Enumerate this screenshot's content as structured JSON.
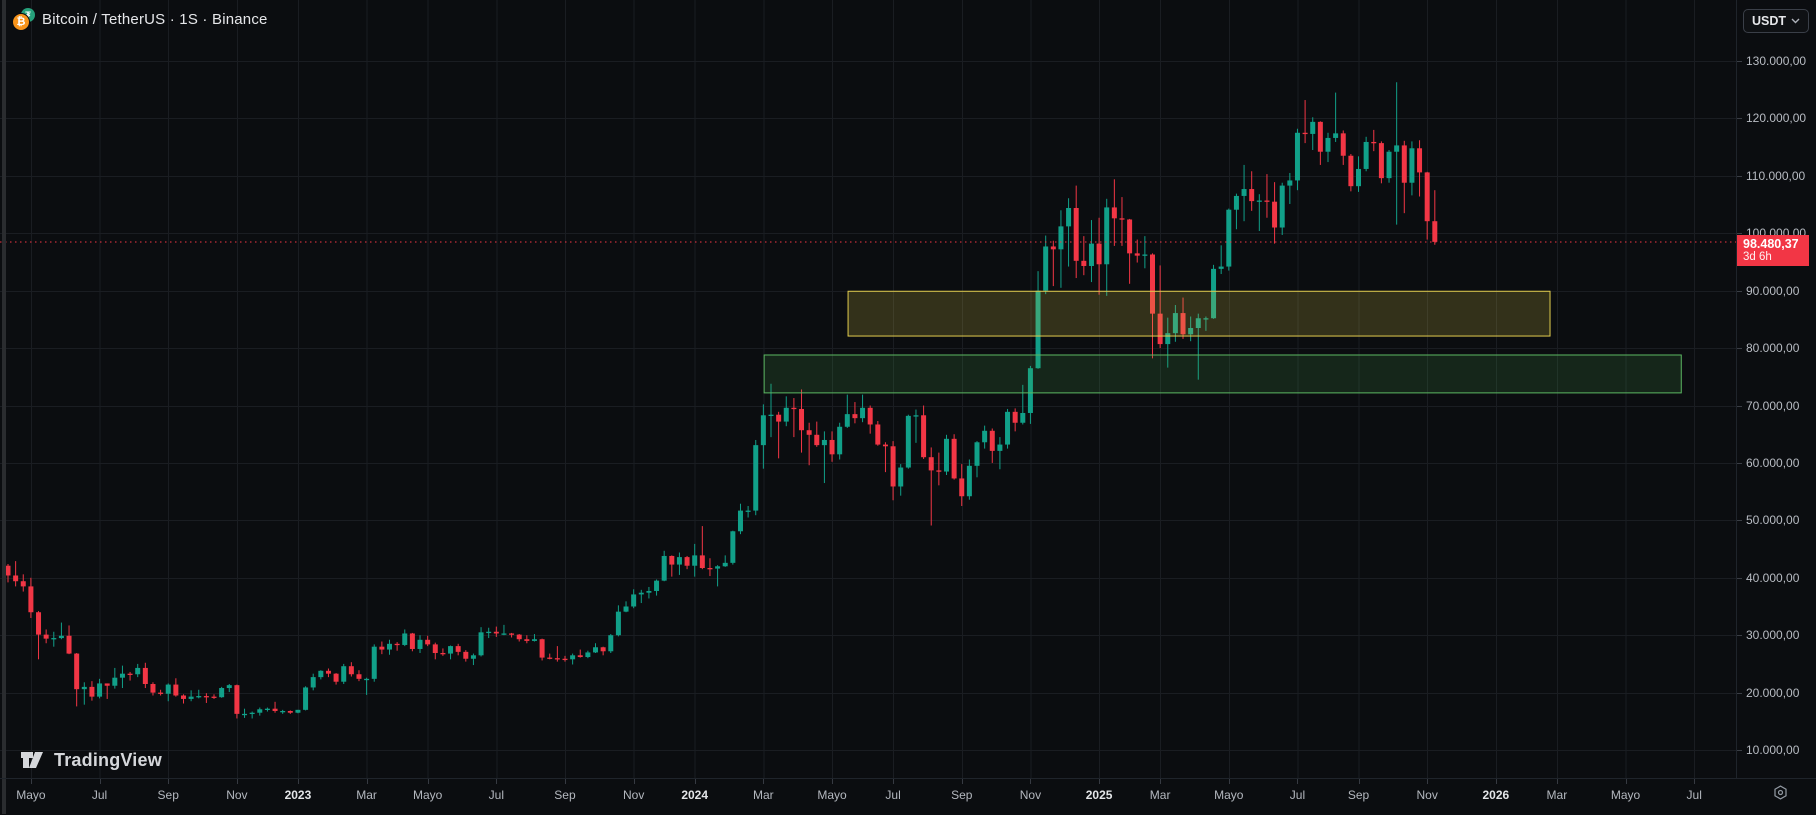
{
  "header": {
    "symbol_title": "Bitcoin / TetherUS · 1S · Binance",
    "currency_button": "USDT"
  },
  "last_price_label": {
    "price_text": "98.480,37",
    "countdown_text": "3d 6h"
  },
  "footer": {
    "logo_text": "TradingView"
  },
  "colors": {
    "background": "#0b0d10",
    "up": "#11a089",
    "down": "#f23645",
    "grid": "#1a1d22",
    "axis_text": "#b8bcc3",
    "last_price_line": "#f23645",
    "zone_yellow_border": "#e2cd4e",
    "zone_yellow_fill": "rgba(216,194,70,0.20)",
    "zone_green_border": "#5cb862",
    "zone_green_fill": "rgba(76,175,80,0.16)"
  },
  "chart_data": {
    "type": "candlestick",
    "title": "Bitcoin / TetherUS weekly candles (1S) on Binance",
    "interval": "1W",
    "start_week": "2022-04-11",
    "price_unit": "USD, values in thousands",
    "visible_price_range_thousands": [
      5.1,
      140.6
    ],
    "grid": true,
    "last_price": 98.48037,
    "price_axis": {
      "labels": [
        {
          "text": "130.000,00",
          "value": 130
        },
        {
          "text": "120.000,00",
          "value": 120
        },
        {
          "text": "110.000,00",
          "value": 110
        },
        {
          "text": "100.000,00",
          "value": 100
        },
        {
          "text": "90.000,00",
          "value": 90
        },
        {
          "text": "80.000,00",
          "value": 80
        },
        {
          "text": "70.000,00",
          "value": 70
        },
        {
          "text": "60.000,00",
          "value": 60
        },
        {
          "text": "50.000,00",
          "value": 50
        },
        {
          "text": "40.000,00",
          "value": 40
        },
        {
          "text": "30.000,00",
          "value": 30
        },
        {
          "text": "20.000,00",
          "value": 20
        },
        {
          "text": "10.000,00",
          "value": 10
        }
      ]
    },
    "time_axis": {
      "ticks": [
        {
          "label": "Mayo",
          "week": 3,
          "year": false
        },
        {
          "label": "Jul",
          "week": 12,
          "year": false
        },
        {
          "label": "Sep",
          "week": 21,
          "year": false
        },
        {
          "label": "Nov",
          "week": 30,
          "year": false
        },
        {
          "label": "2023",
          "week": 38,
          "year": true
        },
        {
          "label": "Mar",
          "week": 47,
          "year": false
        },
        {
          "label": "Mayo",
          "week": 55,
          "year": false
        },
        {
          "label": "Jul",
          "week": 64,
          "year": false
        },
        {
          "label": "Sep",
          "week": 73,
          "year": false
        },
        {
          "label": "Nov",
          "week": 82,
          "year": false
        },
        {
          "label": "2024",
          "week": 90,
          "year": true
        },
        {
          "label": "Mar",
          "week": 99,
          "year": false
        },
        {
          "label": "Mayo",
          "week": 108,
          "year": false
        },
        {
          "label": "Jul",
          "week": 116,
          "year": false
        },
        {
          "label": "Sep",
          "week": 125,
          "year": false
        },
        {
          "label": "Nov",
          "week": 134,
          "year": false
        },
        {
          "label": "2025",
          "week": 143,
          "year": true
        },
        {
          "label": "Mar",
          "week": 151,
          "year": false
        },
        {
          "label": "Mayo",
          "week": 160,
          "year": false
        },
        {
          "label": "Jul",
          "week": 169,
          "year": false
        },
        {
          "label": "Sep",
          "week": 177,
          "year": false
        },
        {
          "label": "Nov",
          "week": 186,
          "year": false
        },
        {
          "label": "2026",
          "week": 195,
          "year": true
        },
        {
          "label": "Mar",
          "week": 203,
          "year": false
        },
        {
          "label": "Mayo",
          "week": 212,
          "year": false
        },
        {
          "label": "Jul",
          "week": 221,
          "year": false
        }
      ]
    },
    "zones": [
      {
        "name": "supply-zone-yellow",
        "price_top": 89.9,
        "price_bottom": 82.1,
        "week_start": 110.1,
        "week_end": 202.1
      },
      {
        "name": "demand-zone-green",
        "price_top": 78.8,
        "price_bottom": 72.2,
        "week_start": 99.1,
        "week_end": 219.3
      }
    ],
    "candles": [
      [
        42.1,
        42.4,
        39.2,
        40.4
      ],
      [
        40.4,
        42.9,
        38.5,
        39.4
      ],
      [
        39.4,
        40.6,
        37.6,
        38.5
      ],
      [
        38.5,
        40.0,
        33.0,
        34.0
      ],
      [
        34.0,
        34.2,
        25.8,
        30.1
      ],
      [
        30.1,
        31.0,
        28.6,
        29.4
      ],
      [
        29.4,
        30.6,
        28.0,
        29.5
      ],
      [
        29.5,
        32.2,
        29.3,
        29.9
      ],
      [
        29.9,
        31.7,
        26.7,
        26.8
      ],
      [
        26.8,
        26.9,
        17.6,
        20.6
      ],
      [
        20.6,
        21.8,
        17.9,
        21.0
      ],
      [
        21.0,
        22.0,
        18.6,
        19.3
      ],
      [
        19.3,
        22.4,
        19.0,
        21.6
      ],
      [
        21.6,
        21.6,
        18.9,
        21.2
      ],
      [
        21.2,
        24.3,
        20.7,
        22.6
      ],
      [
        22.6,
        24.7,
        20.8,
        23.3
      ],
      [
        23.3,
        23.6,
        22.1,
        23.2
      ],
      [
        23.2,
        25.0,
        22.7,
        24.3
      ],
      [
        24.3,
        25.2,
        20.8,
        21.5
      ],
      [
        21.5,
        21.8,
        19.5,
        20.0
      ],
      [
        20.0,
        20.5,
        19.5,
        19.8
      ],
      [
        19.8,
        21.6,
        18.5,
        21.4
      ],
      [
        21.4,
        22.5,
        19.3,
        19.5
      ],
      [
        19.5,
        19.7,
        18.1,
        18.9
      ],
      [
        18.9,
        20.4,
        18.5,
        19.3
      ],
      [
        19.3,
        20.5,
        19.0,
        19.4
      ],
      [
        19.4,
        19.9,
        18.2,
        19.3
      ],
      [
        19.3,
        19.7,
        18.9,
        19.2
      ],
      [
        19.2,
        21.0,
        19.1,
        20.8
      ],
      [
        20.8,
        21.5,
        20.1,
        21.3
      ],
      [
        21.3,
        21.4,
        15.5,
        16.3
      ],
      [
        16.3,
        17.2,
        15.6,
        16.3
      ],
      [
        16.3,
        16.7,
        15.5,
        16.5
      ],
      [
        16.5,
        17.4,
        16.0,
        17.1
      ],
      [
        17.1,
        17.4,
        16.7,
        17.2
      ],
      [
        17.2,
        18.4,
        16.5,
        16.8
      ],
      [
        16.8,
        17.0,
        16.3,
        16.8
      ],
      [
        16.8,
        16.9,
        16.3,
        16.5
      ],
      [
        16.5,
        17.0,
        16.4,
        17.0
      ],
      [
        17.0,
        21.1,
        16.9,
        20.9
      ],
      [
        20.9,
        23.3,
        20.4,
        22.7
      ],
      [
        22.7,
        23.9,
        22.3,
        23.8
      ],
      [
        23.8,
        24.2,
        22.7,
        23.3
      ],
      [
        23.3,
        23.4,
        21.4,
        21.9
      ],
      [
        21.9,
        25.0,
        21.5,
        24.6
      ],
      [
        24.6,
        25.3,
        22.8,
        23.2
      ],
      [
        23.2,
        23.9,
        22.0,
        22.4
      ],
      [
        22.4,
        22.6,
        19.6,
        22.4
      ],
      [
        22.4,
        28.4,
        21.9,
        28.0
      ],
      [
        28.0,
        28.9,
        26.7,
        27.5
      ],
      [
        27.5,
        29.2,
        26.6,
        28.5
      ],
      [
        28.5,
        28.8,
        27.3,
        28.3
      ],
      [
        28.3,
        31.0,
        28.1,
        30.3
      ],
      [
        30.3,
        30.4,
        27.2,
        27.6
      ],
      [
        27.6,
        30.0,
        26.9,
        29.2
      ],
      [
        29.2,
        29.9,
        28.1,
        28.4
      ],
      [
        28.4,
        28.7,
        25.8,
        26.9
      ],
      [
        26.9,
        27.7,
        26.4,
        26.8
      ],
      [
        26.8,
        28.2,
        25.8,
        28.1
      ],
      [
        28.1,
        28.5,
        26.5,
        27.1
      ],
      [
        27.1,
        27.4,
        25.4,
        25.9
      ],
      [
        25.9,
        26.8,
        24.8,
        26.5
      ],
      [
        26.5,
        31.4,
        26.3,
        30.5
      ],
      [
        30.5,
        31.3,
        29.5,
        30.6
      ],
      [
        30.6,
        31.5,
        29.7,
        30.3
      ],
      [
        30.3,
        31.8,
        30.0,
        30.3
      ],
      [
        30.3,
        30.4,
        29.6,
        30.1
      ],
      [
        30.1,
        30.2,
        28.9,
        29.3
      ],
      [
        29.3,
        30.0,
        28.6,
        29.0
      ],
      [
        29.0,
        30.2,
        28.9,
        29.3
      ],
      [
        29.3,
        29.4,
        25.6,
        26.1
      ],
      [
        26.1,
        26.8,
        25.8,
        26.0
      ],
      [
        26.0,
        28.1,
        25.4,
        25.9
      ],
      [
        25.9,
        26.4,
        25.4,
        25.8
      ],
      [
        25.8,
        26.8,
        24.9,
        26.5
      ],
      [
        26.5,
        27.5,
        26.1,
        26.2
      ],
      [
        26.2,
        27.3,
        26.0,
        27.0
      ],
      [
        27.0,
        28.6,
        26.9,
        27.9
      ],
      [
        27.9,
        28.0,
        26.5,
        27.2
      ],
      [
        27.2,
        30.2,
        26.9,
        30.0
      ],
      [
        30.0,
        35.2,
        29.8,
        34.1
      ],
      [
        34.1,
        35.9,
        34.0,
        35.0
      ],
      [
        35.0,
        38.0,
        34.7,
        37.1
      ],
      [
        37.1,
        37.9,
        35.6,
        37.4
      ],
      [
        37.4,
        38.4,
        36.4,
        37.7
      ],
      [
        37.7,
        39.7,
        36.9,
        39.5
      ],
      [
        39.5,
        44.7,
        39.4,
        43.8
      ],
      [
        43.8,
        43.9,
        40.2,
        42.3
      ],
      [
        42.3,
        44.4,
        40.5,
        43.6
      ],
      [
        43.6,
        43.8,
        41.5,
        42.1
      ],
      [
        42.1,
        45.9,
        40.2,
        43.9
      ],
      [
        43.9,
        49.0,
        41.5,
        41.7
      ],
      [
        41.7,
        43.4,
        40.3,
        41.6
      ],
      [
        41.6,
        42.2,
        38.5,
        42.0
      ],
      [
        42.0,
        43.9,
        41.9,
        42.6
      ],
      [
        42.6,
        48.2,
        42.3,
        48.1
      ],
      [
        48.1,
        52.9,
        47.6,
        51.7
      ],
      [
        51.7,
        52.5,
        50.5,
        51.7
      ],
      [
        51.7,
        64.0,
        50.9,
        63.1
      ],
      [
        63.1,
        70.2,
        59.0,
        68.3
      ],
      [
        68.3,
        73.8,
        64.5,
        68.4
      ],
      [
        68.4,
        68.9,
        60.8,
        67.2
      ],
      [
        67.2,
        71.6,
        66.4,
        69.6
      ],
      [
        69.6,
        71.3,
        64.5,
        69.4
      ],
      [
        69.4,
        72.8,
        61.8,
        65.7
      ],
      [
        65.7,
        67.0,
        59.6,
        64.9
      ],
      [
        64.9,
        67.2,
        62.8,
        63.1
      ],
      [
        63.1,
        65.5,
        56.5,
        64.0
      ],
      [
        64.0,
        65.5,
        60.2,
        61.5
      ],
      [
        61.5,
        67.0,
        60.6,
        66.3
      ],
      [
        66.3,
        71.9,
        66.1,
        68.5
      ],
      [
        68.5,
        70.6,
        66.9,
        67.8
      ],
      [
        67.8,
        71.9,
        67.1,
        69.6
      ],
      [
        69.6,
        70.0,
        65.1,
        66.7
      ],
      [
        66.7,
        67.3,
        63.0,
        63.2
      ],
      [
        63.2,
        63.6,
        58.4,
        62.9
      ],
      [
        62.9,
        63.8,
        53.5,
        55.9
      ],
      [
        55.9,
        59.8,
        54.3,
        59.2
      ],
      [
        59.2,
        68.4,
        59.0,
        68.2
      ],
      [
        68.2,
        69.3,
        63.5,
        68.3
      ],
      [
        68.3,
        70.0,
        60.7,
        61.0
      ],
      [
        61.0,
        62.7,
        49.1,
        58.7
      ],
      [
        58.7,
        61.8,
        56.1,
        58.5
      ],
      [
        58.5,
        64.9,
        57.9,
        64.2
      ],
      [
        64.2,
        65.0,
        57.1,
        57.3
      ],
      [
        57.3,
        59.8,
        52.5,
        54.2
      ],
      [
        54.2,
        60.6,
        53.6,
        59.5
      ],
      [
        59.5,
        63.8,
        57.5,
        63.6
      ],
      [
        63.6,
        66.5,
        62.5,
        65.6
      ],
      [
        65.6,
        66.0,
        60.0,
        62.1
      ],
      [
        62.1,
        64.5,
        58.9,
        63.2
      ],
      [
        63.2,
        69.4,
        62.5,
        68.9
      ],
      [
        68.9,
        69.5,
        65.5,
        67.0
      ],
      [
        67.0,
        73.6,
        66.7,
        68.7
      ],
      [
        68.7,
        76.9,
        66.8,
        76.5
      ],
      [
        76.5,
        93.4,
        76.4,
        90.0
      ],
      [
        90.0,
        99.6,
        89.4,
        97.7
      ],
      [
        97.7,
        98.7,
        90.8,
        97.2
      ],
      [
        97.2,
        104.0,
        90.5,
        101.2
      ],
      [
        101.2,
        106.1,
        94.2,
        104.4
      ],
      [
        104.4,
        108.3,
        92.2,
        95.2
      ],
      [
        95.2,
        99.5,
        92.7,
        94.3
      ],
      [
        94.3,
        102.3,
        91.5,
        98.2
      ],
      [
        98.2,
        102.7,
        89.3,
        94.6
      ],
      [
        94.6,
        106.0,
        89.1,
        104.5
      ],
      [
        104.5,
        109.4,
        97.8,
        102.6
      ],
      [
        102.6,
        106.3,
        97.8,
        102.4
      ],
      [
        102.4,
        102.5,
        91.2,
        96.5
      ],
      [
        96.5,
        98.9,
        94.9,
        96.1
      ],
      [
        96.1,
        99.5,
        93.9,
        96.3
      ],
      [
        96.3,
        96.5,
        78.2,
        86.0
      ],
      [
        86.0,
        94.4,
        80.0,
        80.7
      ],
      [
        80.7,
        85.3,
        76.6,
        82.6
      ],
      [
        82.6,
        87.5,
        81.1,
        86.1
      ],
      [
        86.1,
        88.8,
        81.6,
        82.4
      ],
      [
        82.4,
        85.5,
        81.2,
        83.5
      ],
      [
        83.5,
        86.0,
        74.5,
        85.2
      ],
      [
        85.2,
        85.5,
        83.0,
        85.2
      ],
      [
        85.2,
        94.5,
        85.1,
        93.8
      ],
      [
        93.8,
        97.9,
        92.9,
        94.2
      ],
      [
        94.2,
        104.3,
        93.5,
        104.1
      ],
      [
        104.1,
        106.9,
        100.7,
        106.5
      ],
      [
        106.5,
        111.9,
        102.1,
        107.7
      ],
      [
        107.7,
        110.8,
        103.9,
        105.6
      ],
      [
        105.6,
        106.8,
        100.4,
        105.7
      ],
      [
        105.7,
        110.3,
        102.7,
        105.5
      ],
      [
        105.5,
        108.9,
        98.2,
        101.0
      ],
      [
        101.0,
        108.8,
        99.7,
        108.3
      ],
      [
        108.3,
        110.5,
        105.1,
        109.2
      ],
      [
        109.2,
        118.2,
        107.5,
        117.5
      ],
      [
        117.5,
        123.2,
        115.7,
        117.3
      ],
      [
        117.3,
        120.2,
        114.5,
        119.4
      ],
      [
        119.4,
        119.5,
        111.9,
        114.2
      ],
      [
        114.2,
        117.5,
        112.4,
        116.6
      ],
      [
        116.6,
        124.5,
        115.9,
        117.4
      ],
      [
        117.4,
        117.9,
        111.9,
        113.5
      ],
      [
        113.5,
        113.8,
        107.3,
        108.2
      ],
      [
        108.2,
        113.4,
        107.2,
        111.2
      ],
      [
        111.2,
        116.8,
        110.8,
        115.9
      ],
      [
        115.9,
        118.0,
        114.3,
        115.7
      ],
      [
        115.7,
        116.0,
        108.7,
        109.6
      ],
      [
        109.6,
        114.5,
        108.8,
        114.2
      ],
      [
        114.2,
        126.3,
        101.5,
        115.3
      ],
      [
        115.3,
        116.1,
        103.5,
        108.8
      ],
      [
        108.8,
        116.0,
        106.6,
        114.8
      ],
      [
        114.8,
        116.2,
        106.4,
        110.6
      ],
      [
        110.6,
        110.7,
        98.9,
        102.1
      ],
      [
        102.1,
        107.5,
        98.0,
        98.5
      ]
    ]
  }
}
